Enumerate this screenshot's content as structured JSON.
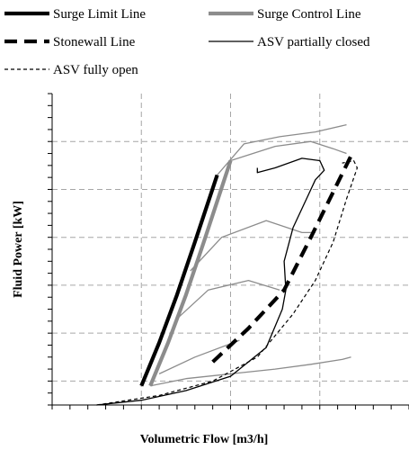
{
  "chart_data": {
    "type": "line",
    "xlabel": "Volumetric Flow [m3/h]",
    "ylabel": "Fluid Power [kW]",
    "xlim": [
      0,
      4
    ],
    "ylim": [
      0,
      6.5
    ],
    "grid": "dashed, major gridlines",
    "legend_placement": "top",
    "series": [
      {
        "name": "Surge Limit Line",
        "color": "#000000",
        "style": "solid-thick",
        "x": [
          1.0,
          1.2,
          1.4,
          1.6,
          1.85
        ],
        "y": [
          0.4,
          1.3,
          2.3,
          3.4,
          4.8
        ]
      },
      {
        "name": "Surge Control Line",
        "color": "#8c8c8c",
        "style": "solid-thick",
        "x": [
          1.1,
          1.3,
          1.5,
          1.7,
          2.0
        ],
        "y": [
          0.4,
          1.3,
          2.3,
          3.4,
          5.1
        ]
      },
      {
        "name": "Stonewall Line",
        "color": "#000000",
        "style": "dashed-thick",
        "x": [
          1.8,
          2.2,
          2.6,
          2.9,
          3.35
        ],
        "y": [
          0.9,
          1.6,
          2.4,
          3.5,
          5.2
        ]
      },
      {
        "name": "ASV partially closed",
        "color": "#000000",
        "style": "solid-thin",
        "x": [
          0.5,
          1.0,
          1.5,
          2.0,
          2.4,
          2.58,
          2.62,
          2.6,
          2.7,
          2.85,
          2.95,
          3.05,
          3.0,
          2.8,
          2.5,
          2.3,
          2.3
        ],
        "y": [
          0.0,
          0.1,
          0.3,
          0.6,
          1.2,
          2.0,
          2.4,
          3.0,
          3.7,
          4.3,
          4.7,
          4.9,
          5.1,
          5.15,
          4.95,
          4.85,
          4.95
        ]
      },
      {
        "name": "ASV fully open",
        "color": "#000000",
        "style": "dashed-thin",
        "x": [
          0.5,
          1.2,
          1.8,
          2.3,
          2.7,
          2.95,
          3.15,
          3.3,
          3.42,
          3.38,
          3.25
        ],
        "y": [
          0.0,
          0.2,
          0.5,
          1.0,
          1.9,
          2.6,
          3.4,
          4.3,
          4.95,
          5.1,
          5.05
        ]
      },
      {
        "color": "#8c8c8c",
        "style": "solid-thin",
        "x": [
          1.1,
          1.5,
          2.0,
          2.5,
          2.9,
          3.25,
          3.35
        ],
        "y": [
          0.4,
          0.55,
          0.65,
          0.75,
          0.85,
          0.95,
          1.0
        ]
      },
      {
        "color": "#8c8c8c",
        "style": "solid-thin",
        "x": [
          1.2,
          1.6,
          2.1
        ],
        "y": [
          0.65,
          1.0,
          1.35
        ]
      },
      {
        "color": "#8c8c8c",
        "style": "solid-thin",
        "x": [
          1.4,
          1.75,
          2.2,
          2.55
        ],
        "y": [
          1.8,
          2.4,
          2.6,
          2.4
        ]
      },
      {
        "color": "#8c8c8c",
        "style": "solid-thin",
        "x": [
          1.55,
          1.9,
          2.4,
          2.8,
          2.95
        ],
        "y": [
          2.8,
          3.5,
          3.85,
          3.6,
          3.6
        ]
      },
      {
        "color": "#8c8c8c",
        "style": "solid-thin",
        "x": [
          2.0,
          2.5,
          2.9,
          3.15,
          3.3
        ],
        "y": [
          5.1,
          5.4,
          5.5,
          5.35,
          5.25
        ]
      },
      {
        "color": "#8c8c8c",
        "style": "solid-thin",
        "x": [
          1.85,
          2.15,
          2.55,
          2.95,
          3.3
        ],
        "y": [
          4.8,
          5.45,
          5.6,
          5.7,
          5.85
        ]
      }
    ]
  }
}
